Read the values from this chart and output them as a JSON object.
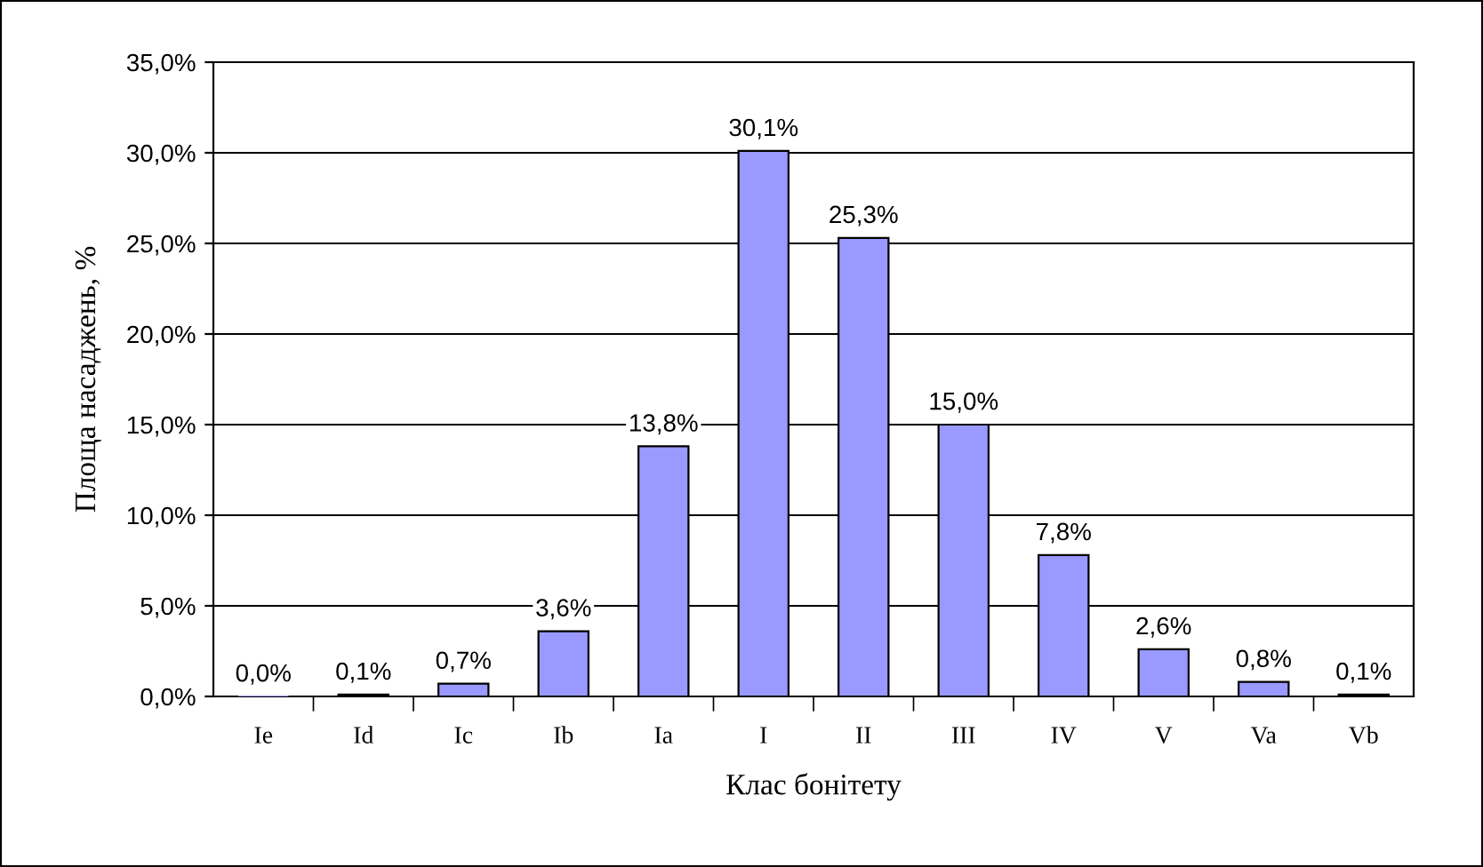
{
  "chart_data": {
    "type": "bar",
    "xlabel": "Клас бонітету",
    "ylabel": "Площа насаджень, %",
    "categories": [
      "Ie",
      "Id",
      "Ic",
      "Ib",
      "Ia",
      "I",
      "II",
      "III",
      "IV",
      "V",
      "Va",
      "Vb"
    ],
    "values": [
      0.0,
      0.1,
      0.7,
      3.6,
      13.8,
      30.1,
      25.3,
      15.0,
      7.8,
      2.6,
      0.8,
      0.1
    ],
    "value_labels": [
      "0,0%",
      "0,1%",
      "0,7%",
      "3,6%",
      "13,8%",
      "30,1%",
      "25,3%",
      "15,0%",
      "7,8%",
      "2,6%",
      "0,8%",
      "0,1%"
    ],
    "color": "#9999ff",
    "ylim": [
      0,
      35
    ],
    "yticks": [
      {
        "value": 0,
        "label": "0,0%"
      },
      {
        "value": 5,
        "label": "5,0%"
      },
      {
        "value": 10,
        "label": "10,0%"
      },
      {
        "value": 15,
        "label": "15,0%"
      },
      {
        "value": 20,
        "label": "20,0%"
      },
      {
        "value": 25,
        "label": "25,0%"
      },
      {
        "value": 30,
        "label": "30,0%"
      },
      {
        "value": 35,
        "label": "35,0%"
      }
    ],
    "grid": "y"
  }
}
